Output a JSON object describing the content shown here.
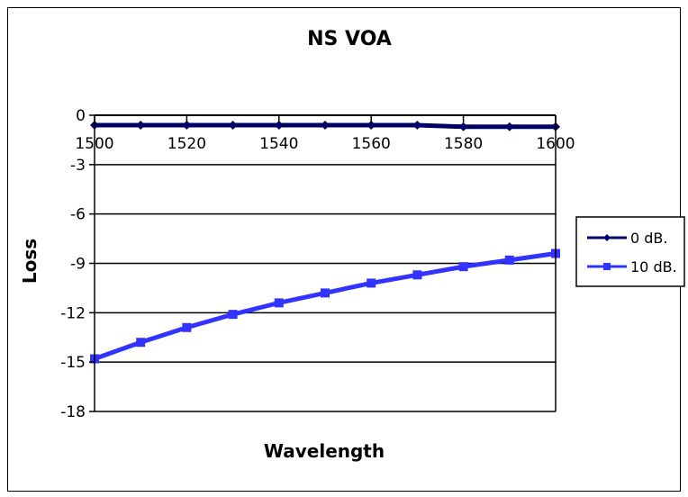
{
  "chart_data": {
    "type": "line",
    "title": "NS VOA",
    "xlabel": "Wavelength",
    "ylabel": "Loss",
    "xlim": [
      1500,
      1600
    ],
    "ylim": [
      -18,
      0
    ],
    "x_ticks": [
      "1500",
      "1520",
      "1540",
      "1560",
      "1580",
      "1600"
    ],
    "y_ticks": [
      "0",
      "-3",
      "-6",
      "-9",
      "-12",
      "-15",
      "-18"
    ],
    "grid": "horizontal",
    "legend_position": "right",
    "series": [
      {
        "name": "0 dB.",
        "color": "#000066",
        "marker": "diamond",
        "x": [
          1500,
          1510,
          1520,
          1530,
          1540,
          1550,
          1560,
          1570,
          1580,
          1590,
          1600
        ],
        "y": [
          -0.6,
          -0.6,
          -0.6,
          -0.6,
          -0.6,
          -0.6,
          -0.6,
          -0.6,
          -0.7,
          -0.7,
          -0.7
        ]
      },
      {
        "name": "10 dB.",
        "color": "#3333ff",
        "marker": "square",
        "x": [
          1500,
          1510,
          1520,
          1530,
          1540,
          1550,
          1560,
          1570,
          1580,
          1590,
          1600
        ],
        "y": [
          -14.8,
          -13.8,
          -12.9,
          -12.1,
          -11.4,
          -10.8,
          -10.2,
          -9.7,
          -9.2,
          -8.8,
          -8.4
        ]
      }
    ]
  }
}
